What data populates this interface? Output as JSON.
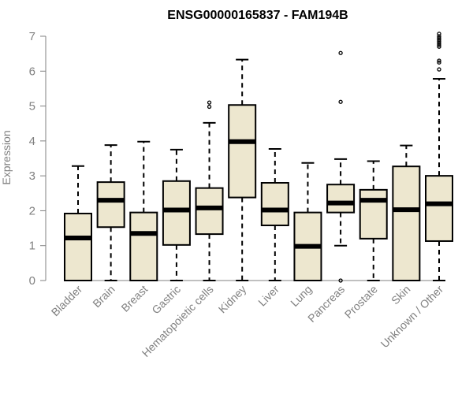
{
  "chart_data": {
    "type": "boxplot",
    "title": "ENSG00000165837 - FAM194B",
    "ylabel": "Expression",
    "xlabel": "",
    "ylim": [
      0,
      7
    ],
    "yticks": [
      0,
      1,
      2,
      3,
      4,
      5,
      6,
      7
    ],
    "box_color": "#ede7cf",
    "line_color": "#000000",
    "axis_color": "#808080",
    "categories": [
      "Bladder",
      "Brain",
      "Breast",
      "Gastric",
      "Hematopoietic cells",
      "Kidney",
      "Liver",
      "Lung",
      "Pancreas",
      "Prostate",
      "Skin",
      "Unknown / Other"
    ],
    "boxes": [
      {
        "name": "Bladder",
        "min": 0,
        "q1": 0,
        "median": 1.22,
        "q3": 1.92,
        "max": 3.28,
        "outliers": []
      },
      {
        "name": "Brain",
        "min": 0,
        "q1": 1.53,
        "median": 2.3,
        "q3": 2.82,
        "max": 3.88,
        "outliers": []
      },
      {
        "name": "Breast",
        "min": 0,
        "q1": 0,
        "median": 1.35,
        "q3": 1.95,
        "max": 3.98,
        "outliers": []
      },
      {
        "name": "Gastric",
        "min": 0,
        "q1": 1.02,
        "median": 2.02,
        "q3": 2.85,
        "max": 3.75,
        "outliers": []
      },
      {
        "name": "Hematopoietic cells",
        "min": 0,
        "q1": 1.33,
        "median": 2.08,
        "q3": 2.65,
        "max": 4.52,
        "outliers": [
          4.98,
          5.1
        ]
      },
      {
        "name": "Kidney",
        "min": 0,
        "q1": 2.38,
        "median": 3.98,
        "q3": 5.03,
        "max": 6.33,
        "outliers": []
      },
      {
        "name": "Liver",
        "min": 0,
        "q1": 1.58,
        "median": 2.02,
        "q3": 2.8,
        "max": 3.77,
        "outliers": []
      },
      {
        "name": "Lung",
        "min": 0,
        "q1": 0,
        "median": 0.98,
        "q3": 1.95,
        "max": 3.37,
        "outliers": []
      },
      {
        "name": "Pancreas",
        "min": 1.0,
        "q1": 1.95,
        "median": 2.22,
        "q3": 2.75,
        "max": 3.48,
        "outliers": [
          0,
          5.12,
          6.52
        ]
      },
      {
        "name": "Prostate",
        "min": 0,
        "q1": 1.2,
        "median": 2.3,
        "q3": 2.6,
        "max": 3.42,
        "outliers": []
      },
      {
        "name": "Skin",
        "min": 0,
        "q1": 0,
        "median": 2.03,
        "q3": 3.27,
        "max": 3.87,
        "outliers": []
      },
      {
        "name": "Unknown / Other",
        "min": 0,
        "q1": 1.13,
        "median": 2.2,
        "q3": 3.0,
        "max": 5.78,
        "outliers": [
          6.05,
          6.25,
          6.3,
          6.7,
          6.75,
          6.8,
          6.85,
          6.9,
          6.95,
          7.0,
          7.07
        ]
      }
    ]
  }
}
